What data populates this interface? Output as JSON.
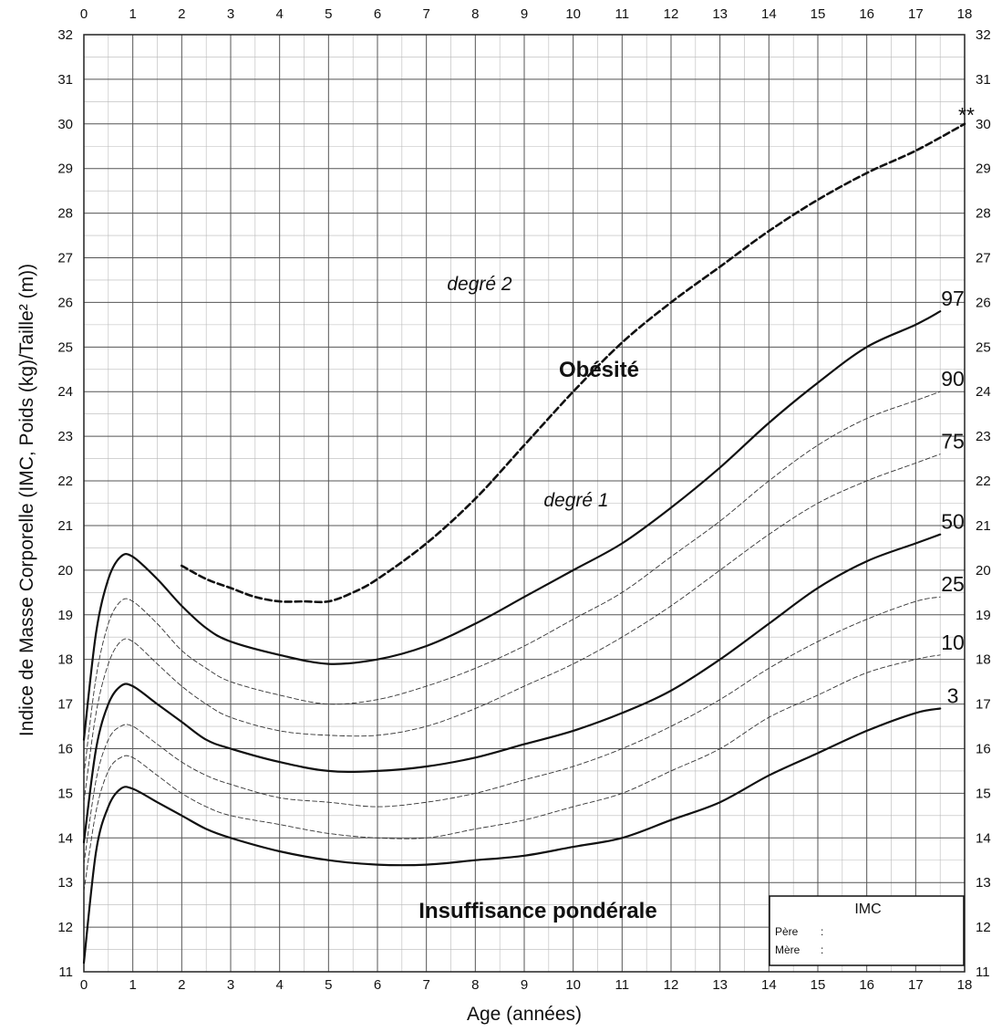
{
  "chart_data": {
    "type": "line",
    "xlabel": "Age (années)",
    "ylabel": "Indice de Masse Corporelle (IMC, Poids (kg)/Taille² (m))",
    "xlim": [
      0,
      18
    ],
    "ylim": [
      11,
      32
    ],
    "x_ticks": [
      0,
      1,
      2,
      3,
      4,
      5,
      6,
      7,
      8,
      9,
      10,
      11,
      12,
      13,
      14,
      15,
      16,
      17,
      18
    ],
    "y_ticks": [
      11,
      12,
      13,
      14,
      15,
      16,
      17,
      18,
      19,
      20,
      21,
      22,
      23,
      24,
      25,
      26,
      27,
      28,
      29,
      30,
      31,
      32
    ],
    "grid": "major every 1 unit, minor every 0.5 unit",
    "series": [
      {
        "name": "97",
        "style": "solid",
        "x": [
          0,
          0.25,
          0.5,
          0.75,
          1,
          1.5,
          2,
          2.5,
          3,
          4,
          5,
          6,
          7,
          8,
          9,
          10,
          11,
          12,
          13,
          14,
          15,
          16,
          17,
          17.5
        ],
        "y": [
          16.2,
          18.6,
          19.8,
          20.3,
          20.3,
          19.8,
          19.2,
          18.7,
          18.4,
          18.1,
          17.9,
          18.0,
          18.3,
          18.8,
          19.4,
          20.0,
          20.6,
          21.4,
          22.3,
          23.3,
          24.2,
          25.0,
          25.5,
          25.8
        ]
      },
      {
        "name": "90",
        "style": "dashed",
        "x": [
          0,
          0.25,
          0.5,
          0.75,
          1,
          1.5,
          2,
          2.5,
          3,
          4,
          5,
          6,
          7,
          8,
          9,
          10,
          11,
          12,
          13,
          14,
          15,
          16,
          17,
          17.5
        ],
        "y": [
          15.4,
          17.6,
          18.8,
          19.3,
          19.3,
          18.8,
          18.2,
          17.8,
          17.5,
          17.2,
          17.0,
          17.1,
          17.4,
          17.8,
          18.3,
          18.9,
          19.5,
          20.3,
          21.1,
          22.0,
          22.8,
          23.4,
          23.8,
          24.0
        ]
      },
      {
        "name": "75",
        "style": "dashed",
        "x": [
          0,
          0.25,
          0.5,
          0.75,
          1,
          1.5,
          2,
          2.5,
          3,
          4,
          5,
          6,
          7,
          8,
          9,
          10,
          11,
          12,
          13,
          14,
          15,
          16,
          17,
          17.5
        ],
        "y": [
          14.8,
          16.8,
          17.9,
          18.4,
          18.4,
          17.9,
          17.4,
          17.0,
          16.7,
          16.4,
          16.3,
          16.3,
          16.5,
          16.9,
          17.4,
          17.9,
          18.5,
          19.2,
          20.0,
          20.8,
          21.5,
          22.0,
          22.4,
          22.6
        ]
      },
      {
        "name": "50",
        "style": "solid",
        "x": [
          0,
          0.25,
          0.5,
          0.75,
          1,
          1.5,
          2,
          2.5,
          3,
          4,
          5,
          6,
          7,
          8,
          9,
          10,
          11,
          12,
          13,
          14,
          15,
          16,
          17,
          17.5
        ],
        "y": [
          13.9,
          16.0,
          17.0,
          17.4,
          17.4,
          17.0,
          16.6,
          16.2,
          16.0,
          15.7,
          15.5,
          15.5,
          15.6,
          15.8,
          16.1,
          16.4,
          16.8,
          17.3,
          18.0,
          18.8,
          19.6,
          20.2,
          20.6,
          20.8
        ]
      },
      {
        "name": "25",
        "style": "dashed",
        "x": [
          0,
          0.25,
          0.5,
          0.75,
          1,
          1.5,
          2,
          2.5,
          3,
          4,
          5,
          6,
          7,
          8,
          9,
          10,
          11,
          12,
          13,
          14,
          15,
          16,
          17,
          17.5
        ],
        "y": [
          13.4,
          15.3,
          16.2,
          16.5,
          16.5,
          16.1,
          15.7,
          15.4,
          15.2,
          14.9,
          14.8,
          14.7,
          14.8,
          15.0,
          15.3,
          15.6,
          16.0,
          16.5,
          17.1,
          17.8,
          18.4,
          18.9,
          19.3,
          19.4
        ]
      },
      {
        "name": "10",
        "style": "dashed",
        "x": [
          0,
          0.25,
          0.5,
          0.75,
          1,
          1.5,
          2,
          2.5,
          3,
          4,
          5,
          6,
          7,
          8,
          9,
          10,
          11,
          12,
          13,
          14,
          15,
          16,
          17,
          17.5
        ],
        "y": [
          12.8,
          14.6,
          15.5,
          15.8,
          15.8,
          15.4,
          15.0,
          14.7,
          14.5,
          14.3,
          14.1,
          14.0,
          14.0,
          14.2,
          14.4,
          14.7,
          15.0,
          15.5,
          16.0,
          16.7,
          17.2,
          17.7,
          18.0,
          18.1
        ]
      },
      {
        "name": "3",
        "style": "solid",
        "x": [
          0,
          0.25,
          0.5,
          0.75,
          1,
          1.5,
          2,
          2.5,
          3,
          4,
          5,
          6,
          7,
          8,
          9,
          10,
          11,
          12,
          13,
          14,
          15,
          16,
          17,
          17.5
        ],
        "y": [
          11.2,
          13.7,
          14.7,
          15.1,
          15.1,
          14.8,
          14.5,
          14.2,
          14.0,
          13.7,
          13.5,
          13.4,
          13.4,
          13.5,
          13.6,
          13.8,
          14.0,
          14.4,
          14.8,
          15.4,
          15.9,
          16.4,
          16.8,
          16.9
        ]
      },
      {
        "name": "**",
        "style": "bold-dashed",
        "x": [
          2,
          2.5,
          3,
          3.5,
          4,
          4.5,
          5,
          5.5,
          6,
          7,
          8,
          9,
          10,
          11,
          12,
          13,
          14,
          15,
          16,
          17,
          18
        ],
        "y": [
          20.1,
          19.8,
          19.6,
          19.4,
          19.3,
          19.3,
          19.3,
          19.5,
          19.8,
          20.6,
          21.6,
          22.8,
          24.0,
          25.1,
          26.0,
          26.8,
          27.6,
          28.3,
          28.9,
          29.4,
          30.0
        ]
      }
    ],
    "annotations": {
      "obesity": "Obésité",
      "degree2": "degré 2",
      "degree1": "degré 1",
      "underweight": "Insuffisance pondérale",
      "asterisks": "**"
    }
  },
  "legend_box": {
    "title": "IMC",
    "rows": [
      {
        "label": "Père",
        "sep": ":"
      },
      {
        "label": "Mère",
        "sep": ":"
      }
    ]
  }
}
